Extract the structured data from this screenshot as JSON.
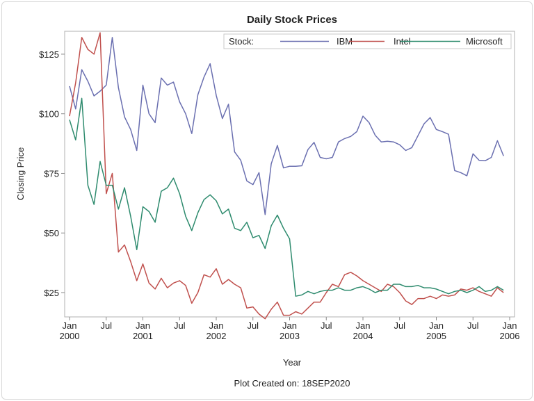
{
  "chart_data": {
    "type": "line",
    "title": "Daily Stock Prices",
    "xlabel": "Year",
    "ylabel": "Closing Price",
    "footnote": "Plot Created on: 18SEP2020",
    "legend": {
      "title": "Stock:",
      "placement": "top-right-inside"
    },
    "x_start": "Jan 2000",
    "x_unit": "month index from Jan 2000",
    "xlim": [
      0,
      72
    ],
    "ylim": [
      14.8,
      134.6
    ],
    "y_ticks": [
      {
        "value": 25,
        "label": "$25"
      },
      {
        "value": 50,
        "label": "$50"
      },
      {
        "value": 75,
        "label": "$75"
      },
      {
        "value": 100,
        "label": "$100"
      },
      {
        "value": 125,
        "label": "$125"
      }
    ],
    "x_ticks": [
      {
        "month": 0,
        "label": "Jan",
        "year": "2000"
      },
      {
        "month": 6,
        "label": "Jul",
        "year": ""
      },
      {
        "month": 12,
        "label": "Jan",
        "year": "2001"
      },
      {
        "month": 18,
        "label": "Jul",
        "year": ""
      },
      {
        "month": 24,
        "label": "Jan",
        "year": "2002"
      },
      {
        "month": 30,
        "label": "Jul",
        "year": ""
      },
      {
        "month": 36,
        "label": "Jan",
        "year": "2003"
      },
      {
        "month": 42,
        "label": "Jul",
        "year": ""
      },
      {
        "month": 48,
        "label": "Jan",
        "year": "2004"
      },
      {
        "month": 54,
        "label": "Jul",
        "year": ""
      },
      {
        "month": 60,
        "label": "Jan",
        "year": "2005"
      },
      {
        "month": 66,
        "label": "Jul",
        "year": ""
      },
      {
        "month": 72,
        "label": "Jan",
        "year": "2006"
      }
    ],
    "series": [
      {
        "name": "IBM",
        "color": "#6a6fb0",
        "values": [
          111.6,
          102,
          118.5,
          113.6,
          107.5,
          109.5,
          112,
          132,
          111,
          98.7,
          93.4,
          84.6,
          112,
          100,
          96.3,
          115,
          112,
          113.3,
          105,
          100,
          91.7,
          108,
          115.4,
          121,
          107.7,
          98,
          104,
          84,
          80.5,
          71.8,
          70.3,
          75.3,
          57.7,
          79,
          86.7,
          77.3,
          78,
          78,
          78.2,
          85,
          88,
          81.7,
          81.1,
          81.7,
          88.2,
          89.6,
          90.5,
          92.5,
          99,
          96.3,
          91,
          88.2,
          88.5,
          88.2,
          87,
          84.6,
          85.8,
          90.8,
          95.8,
          98.4,
          93.4,
          92.5,
          91.4,
          76.2,
          75.3,
          74,
          83.2,
          80.5,
          80.3,
          81.7,
          88.7,
          82.3
        ]
      },
      {
        "name": "Intel",
        "color": "#c0504d",
        "values": [
          99,
          113,
          132,
          127,
          125,
          134,
          66.5,
          75,
          42,
          45,
          38,
          30,
          37,
          29,
          26.5,
          31,
          27,
          29,
          30,
          28,
          20.5,
          25,
          32.5,
          31.5,
          35,
          28.5,
          30.5,
          28.5,
          27,
          18.5,
          19,
          16,
          14,
          18,
          21,
          15.5,
          15.5,
          17,
          16,
          18.5,
          21,
          21,
          25,
          28.5,
          27.5,
          32.5,
          33.5,
          32,
          30,
          28.5,
          27,
          25.5,
          28.5,
          27.5,
          25,
          21.5,
          20,
          22.5,
          22.5,
          23.5,
          22.5,
          24,
          23.5,
          24,
          26.5,
          26,
          27,
          25.5,
          24.5,
          23.5,
          27,
          25
        ]
      },
      {
        "name": "Microsoft",
        "color": "#2e8b6e",
        "values": [
          97.5,
          89,
          106.5,
          70,
          62,
          80,
          70,
          70,
          60,
          69,
          57,
          43,
          61,
          59,
          54.5,
          67.5,
          69,
          73,
          66.5,
          57,
          51,
          58.5,
          64,
          66,
          63.5,
          58,
          60,
          52,
          51,
          54.5,
          48,
          49,
          43.5,
          53,
          57.5,
          52,
          47.5,
          23.5,
          24,
          25.5,
          24.5,
          25.5,
          26,
          26,
          27,
          26,
          26,
          27,
          27.5,
          26.5,
          25,
          26,
          26,
          28.5,
          28.5,
          27.5,
          27.5,
          28,
          27,
          27,
          26.5,
          25.5,
          24.5,
          25.5,
          26,
          25,
          26,
          27.5,
          25.5,
          26,
          27.5,
          26
        ]
      }
    ]
  }
}
